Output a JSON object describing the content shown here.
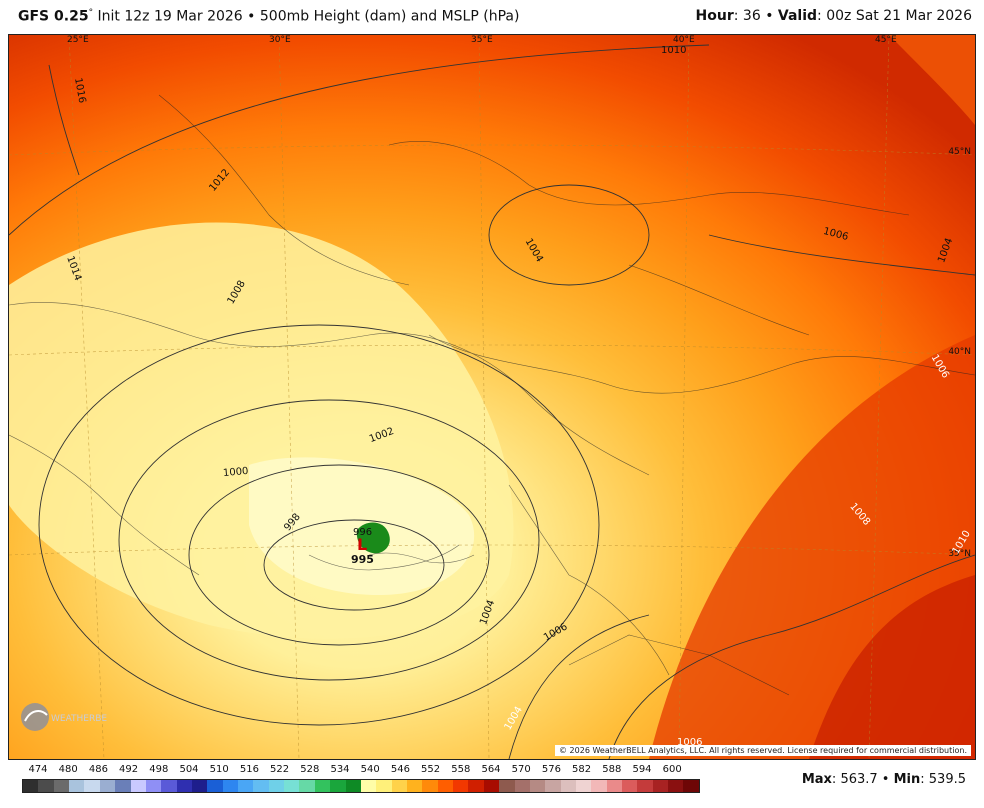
{
  "header": {
    "model": "GFS 0.25",
    "degree": "°",
    "init_text": "Init 12z 19 Mar 2026",
    "bullet": "•",
    "product": "500mb Height (dam) and MSLP (hPa)",
    "hour_label": "Hour",
    "hour_value": "36",
    "valid_label": "Valid",
    "valid_value": "00z Sat 21 Mar 2026"
  },
  "map": {
    "top_lon_labels": [
      "25°E",
      "30°E",
      "35°E",
      "40°E",
      "45°E"
    ],
    "right_lat_labels": [
      "45°N",
      "40°N",
      "35°N"
    ],
    "isobar_labels": [
      "1010",
      "1016",
      "1012",
      "1014",
      "1008",
      "1004",
      "1006",
      "1004",
      "1002",
      "1000",
      "998",
      "996",
      "1004",
      "1006",
      "1008",
      "1010",
      "1004",
      "1006",
      "1006",
      "1008",
      "1010"
    ],
    "low_marker": "L",
    "low_value": "995",
    "copyright": "© 2026 WeatherBELL Analytics, LLC. All rights reserved. License required for commercial distribution.",
    "logo_text": "WEATHERBELL"
  },
  "colorbar": {
    "labels": [
      "474",
      "480",
      "486",
      "492",
      "498",
      "504",
      "510",
      "516",
      "522",
      "528",
      "534",
      "540",
      "546",
      "552",
      "558",
      "564",
      "570",
      "576",
      "582",
      "588",
      "594",
      "600"
    ],
    "colors": [
      "#2f2f2f",
      "#4c4c4c",
      "#6b6b6b",
      "#a9c3dd",
      "#c8d9ee",
      "#9aaed1",
      "#6a7fb8",
      "#c9c9ff",
      "#8f8ff5",
      "#5a5ad8",
      "#2f2fb0",
      "#1e1e8c",
      "#1a5fd6",
      "#2e86f0",
      "#4aa6f5",
      "#63bdf2",
      "#6fd0e8",
      "#77e0d5",
      "#66d9a6",
      "#33c25e",
      "#1aa63c",
      "#0e8a25",
      "#fffda8",
      "#fff07a",
      "#ffd24a",
      "#ffb21e",
      "#ff8a0a",
      "#ff5e00",
      "#f23800",
      "#d01f00",
      "#a80c00",
      "#8e5a4e",
      "#a4706a",
      "#b58a84",
      "#c8a5a2",
      "#dcbfbd",
      "#efd3d2",
      "#f2b8b8",
      "#ea8a8a",
      "#db5c5c",
      "#c43b3b",
      "#a82222",
      "#8a1010",
      "#6e0606"
    ],
    "max_label": "Max",
    "max_value": "563.7",
    "min_label": "Min",
    "min_value": "539.5"
  }
}
